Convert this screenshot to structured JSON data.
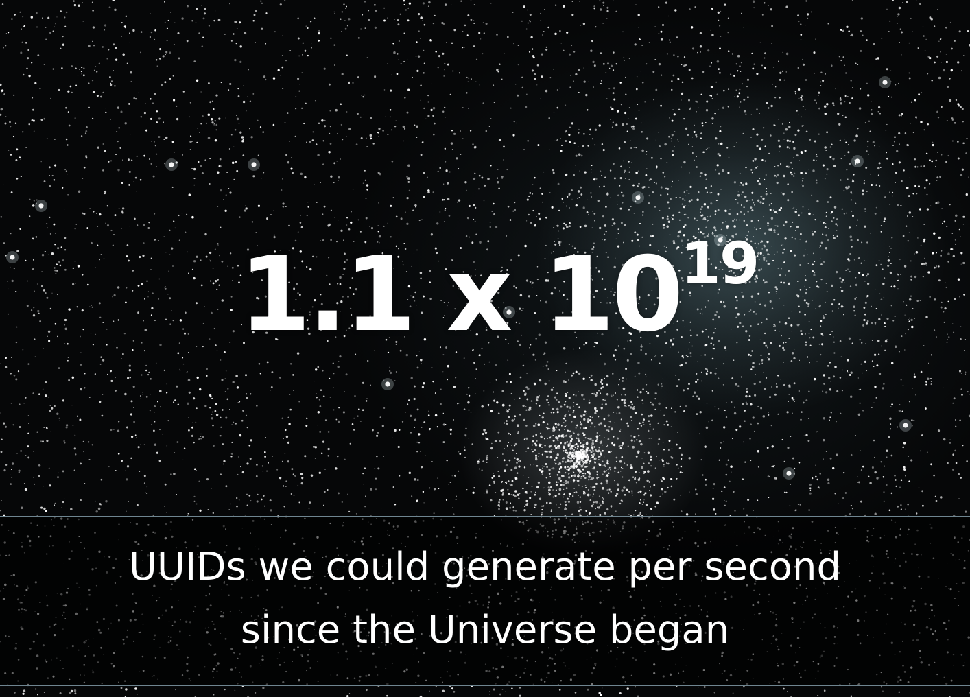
{
  "slide": {
    "headline": {
      "base": "1.1 x 10",
      "exponent": "19"
    },
    "caption": {
      "line1": "UUIDs we could generate per second",
      "line2": "since the Universe began"
    }
  }
}
